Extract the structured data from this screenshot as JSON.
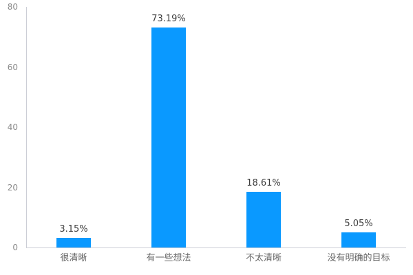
{
  "chart_data": {
    "type": "bar",
    "title": "",
    "xlabel": "",
    "ylabel": "",
    "categories": [
      "很清晰",
      "有一些想法",
      "不太清晰",
      "没有明确的目标"
    ],
    "values": [
      3.15,
      73.19,
      18.61,
      5.05
    ],
    "value_labels": [
      "3.15%",
      "73.19%",
      "18.61%",
      "5.05%"
    ],
    "y_ticks": [
      "0",
      "20",
      "40",
      "60",
      "80"
    ],
    "y_tick_values": [
      0,
      20,
      40,
      60,
      80
    ],
    "ylim": [
      0,
      80
    ],
    "grid": false,
    "legend": false,
    "colors": {
      "bar": "#0a99ff",
      "axis_line": "#ccced6",
      "y_tick_label": "#8a8a8a",
      "category_label": "#666666",
      "value_label": "#3d3d3d"
    }
  }
}
